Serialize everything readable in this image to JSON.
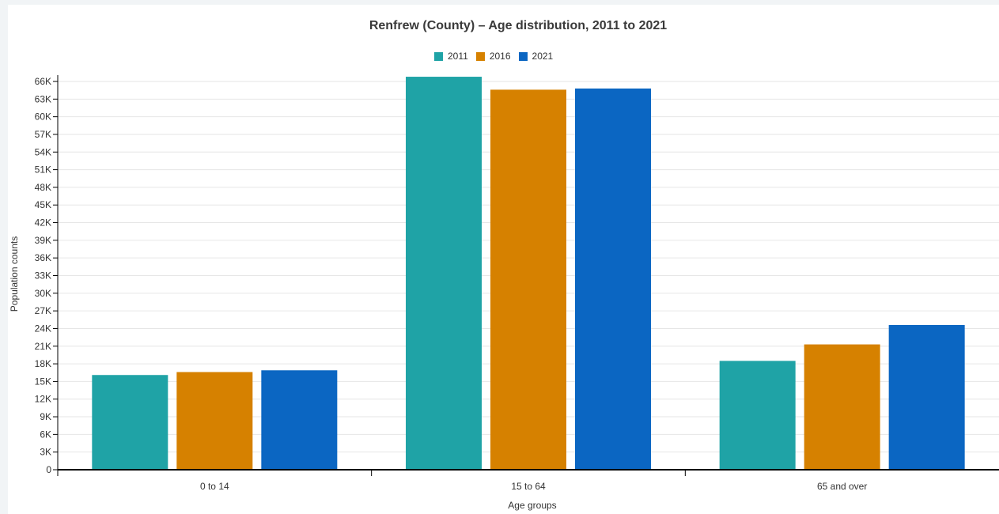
{
  "chart_data": {
    "type": "bar",
    "title": "Renfrew (County) – Age distribution, 2011 to 2021",
    "xlabel": "Age groups",
    "ylabel": "Population counts",
    "categories": [
      "0 to 14",
      "15 to 64",
      "65 and over"
    ],
    "series": [
      {
        "name": "2011",
        "color": "#1fa3a6",
        "values": [
          16100,
          66800,
          18500
        ]
      },
      {
        "name": "2016",
        "color": "#d68100",
        "values": [
          16600,
          64600,
          21300
        ]
      },
      {
        "name": "2021",
        "color": "#0b66c2",
        "values": [
          16900,
          64800,
          24600
        ]
      }
    ],
    "ylim": [
      0,
      66000
    ],
    "yticks": [
      0,
      3000,
      6000,
      9000,
      12000,
      15000,
      18000,
      21000,
      24000,
      27000,
      30000,
      33000,
      36000,
      39000,
      42000,
      45000,
      48000,
      51000,
      54000,
      57000,
      60000,
      63000,
      66000
    ],
    "ytick_labels": [
      "0",
      "3K",
      "6K",
      "9K",
      "12K",
      "15K",
      "18K",
      "21K",
      "24K",
      "27K",
      "30K",
      "33K",
      "36K",
      "39K",
      "42K",
      "45K",
      "48K",
      "51K",
      "54K",
      "57K",
      "60K",
      "63K",
      "66K"
    ],
    "grid": true,
    "legend_position": "top-center"
  }
}
